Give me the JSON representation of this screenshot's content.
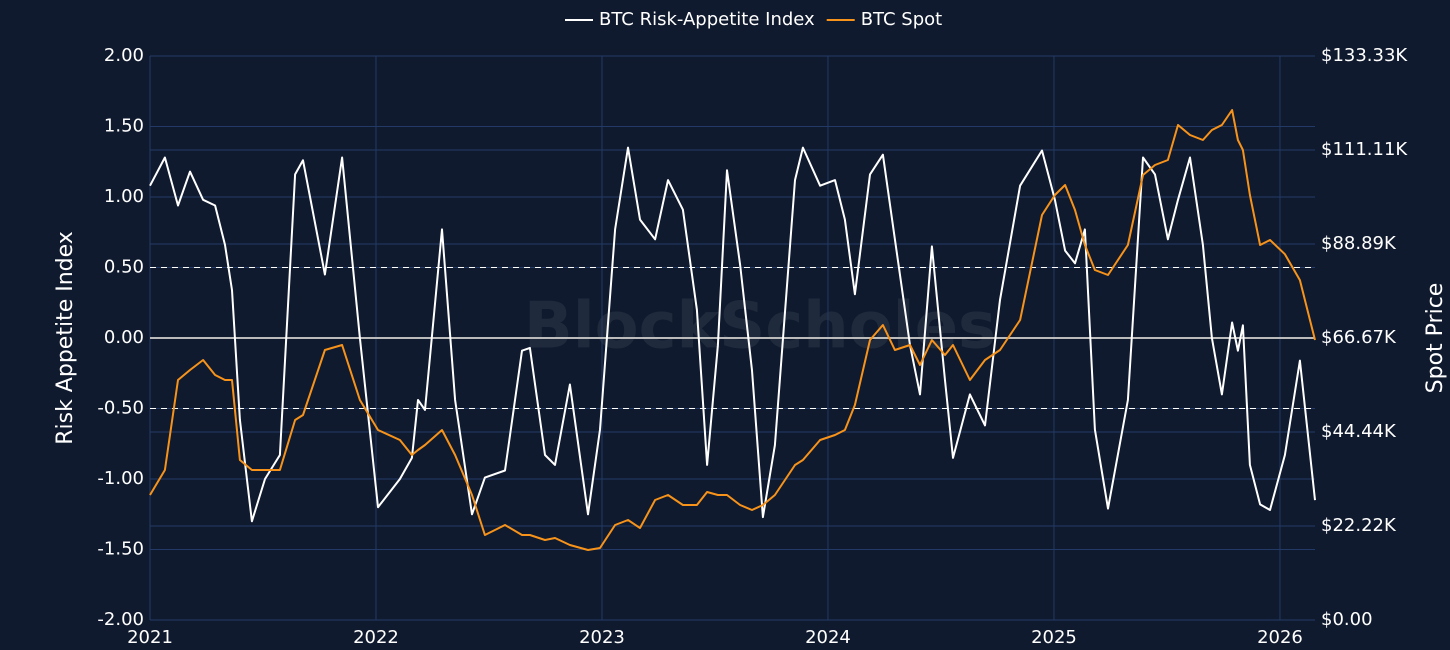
{
  "chart_data": {
    "type": "line",
    "watermark": "BlockScholes",
    "ylabel": "Risk Appetite Index",
    "y2label": "Spot Price",
    "legend": "top",
    "grid": true,
    "xlim": [
      2021,
      2026.155
    ],
    "xticks": [
      2021,
      2022,
      2023,
      2024,
      2025,
      2026
    ],
    "ylim": [
      -2,
      2
    ],
    "yticks": [
      {
        "value": -2,
        "label": "-2.00"
      },
      {
        "value": -1.5,
        "label": "-1.50"
      },
      {
        "value": -1,
        "label": "-1.00"
      },
      {
        "value": -0.5,
        "label": "-0.50"
      },
      {
        "value": 0,
        "label": "0.00"
      },
      {
        "value": 0.5,
        "label": "0.50"
      },
      {
        "value": 1,
        "label": "1.00"
      },
      {
        "value": 1.5,
        "label": "1.50"
      },
      {
        "value": 2,
        "label": "2.00"
      }
    ],
    "y2lim": [
      0,
      133333
    ],
    "y2ticks": [
      {
        "value": 0,
        "label": "$0.00"
      },
      {
        "value": 22222,
        "label": "$22.22K"
      },
      {
        "value": 44444,
        "label": "$44.44K"
      },
      {
        "value": 66667,
        "label": "$66.67K"
      },
      {
        "value": 88889,
        "label": "$88.89K"
      },
      {
        "value": 111111,
        "label": "$111.11K"
      },
      {
        "value": 133333,
        "label": "$133.33K"
      }
    ],
    "hlines": [
      {
        "value": 0.5,
        "style": "dashed"
      },
      {
        "value": 0,
        "style": "solid"
      },
      {
        "value": -0.5,
        "style": "dashed"
      }
    ],
    "x": [
      2021.0,
      2021.066,
      2021.124,
      2021.177,
      2021.235,
      2021.288,
      2021.332,
      2021.363,
      2021.398,
      2021.451,
      2021.509,
      2021.575,
      2021.642,
      2021.677,
      2021.774,
      2021.85,
      2021.929,
      2022.009,
      2022.106,
      2022.159,
      2022.186,
      2022.217,
      2022.292,
      2022.35,
      2022.425,
      2022.482,
      2022.571,
      2022.646,
      2022.681,
      2022.748,
      2022.792,
      2022.858,
      2022.938,
      2022.991,
      2023.058,
      2023.115,
      2023.168,
      2023.235,
      2023.292,
      2023.358,
      2023.42,
      2023.465,
      2023.513,
      2023.553,
      2023.611,
      2023.664,
      2023.712,
      2023.765,
      2023.854,
      2023.889,
      2023.965,
      2024.031,
      2024.075,
      2024.119,
      2024.186,
      2024.243,
      2024.296,
      2024.363,
      2024.407,
      2024.46,
      2024.518,
      2024.553,
      2024.628,
      2024.695,
      2024.761,
      2024.85,
      2024.947,
      2025.004,
      2025.049,
      2025.093,
      2025.137,
      2025.181,
      2025.239,
      2025.327,
      2025.394,
      2025.447,
      2025.504,
      2025.549,
      2025.602,
      2025.659,
      2025.699,
      2025.743,
      2025.788,
      2025.814,
      2025.836,
      2025.867,
      2025.912,
      2025.956,
      2026.022,
      2026.088,
      2026.155
    ],
    "series": [
      {
        "name": "BTC Risk-Appetite Index",
        "color": "#ffffff",
        "values": [
          1.08,
          1.28,
          0.94,
          1.18,
          0.98,
          0.94,
          0.66,
          0.34,
          -0.58,
          -1.3,
          -1.0,
          -0.83,
          1.16,
          1.26,
          0.45,
          1.28,
          0,
          -1.2,
          -1.0,
          -0.85,
          -0.44,
          -0.51,
          0.77,
          -0.44,
          -1.25,
          -0.99,
          -0.94,
          -0.09,
          -0.07,
          -0.83,
          -0.9,
          -0.33,
          -1.25,
          -0.65,
          0.77,
          1.35,
          0.84,
          0.7,
          1.12,
          0.91,
          0.2,
          -0.9,
          -0.05,
          1.19,
          0.52,
          -0.23,
          -1.27,
          -0.76,
          1.12,
          1.35,
          1.08,
          1.12,
          0.84,
          0.31,
          1.16,
          1.3,
          0.7,
          -0.05,
          -0.4,
          0.65,
          -0.3,
          -0.85,
          -0.4,
          -0.62,
          0.27,
          1.08,
          1.33,
          0.98,
          0.62,
          0.53,
          0.77,
          -0.65,
          -1.21,
          -0.44,
          1.28,
          1.16,
          0.7,
          0.98,
          1.28,
          0.66,
          0,
          -0.4,
          0.11,
          -0.09,
          0.09,
          -0.9,
          -1.18,
          -1.22,
          -0.83,
          -0.16,
          -1.15
        ]
      },
      {
        "name": "BTC Spot",
        "color": "#f7931a",
        "axis": "y2",
        "values": [
          29550,
          35460,
          56740,
          59100,
          61470,
          57920,
          56740,
          56740,
          37830,
          35460,
          35460,
          35460,
          47280,
          48460,
          63830,
          65010,
          52010,
          44920,
          42550,
          39010,
          40190,
          41370,
          44920,
          39010,
          29550,
          20090,
          22460,
          20090,
          20090,
          18910,
          19380,
          17730,
          16550,
          17020,
          22460,
          23640,
          21750,
          28370,
          29550,
          27190,
          27190,
          30260,
          29550,
          29550,
          27190,
          26000,
          27190,
          29550,
          36640,
          37830,
          42550,
          43730,
          44920,
          50830,
          66200,
          69740,
          63830,
          65010,
          60280,
          66200,
          62640,
          65010,
          56740,
          61470,
          63830,
          70920,
          95740,
          100470,
          102840,
          96920,
          88650,
          82740,
          81560,
          88650,
          105200,
          107560,
          108740,
          117010,
          114650,
          113470,
          115830,
          117010,
          120560,
          113470,
          111110,
          100470,
          88650,
          89830,
          86470,
          80360,
          66200
        ]
      }
    ]
  }
}
